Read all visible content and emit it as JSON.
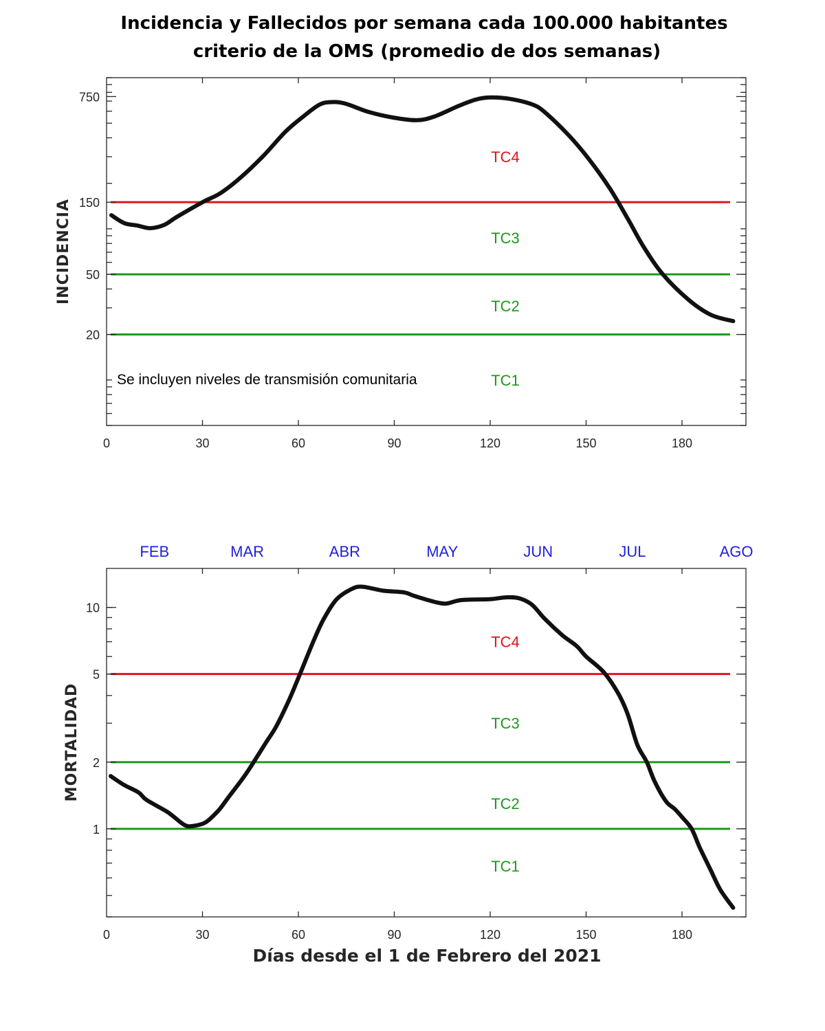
{
  "title_lines": [
    "Incidencia y Fallecidos por semana cada 100.000 habitantes",
    "criterio de la OMS (promedio de dos semanas)"
  ],
  "colors": {
    "curve": "#111111",
    "tc4": "#e0141e",
    "tc_green": "#1a9a1a",
    "month": "#1f1fe0"
  },
  "chart_data": [
    {
      "type": "line",
      "id": "incidencia",
      "ylabel": "INCIDENCIA",
      "xlabel": "",
      "yscale": "log",
      "xlim": [
        0,
        200
      ],
      "ylim": [
        5,
        1000
      ],
      "xticks": [
        0,
        30,
        60,
        90,
        120,
        150,
        180
      ],
      "xtick_labels": [
        "0",
        "30",
        "60",
        "90",
        "120",
        "150",
        "180"
      ],
      "yticks": [
        20,
        50,
        150,
        750
      ],
      "ytick_labels": [
        "20",
        "50",
        "150",
        "750"
      ],
      "grid": false,
      "annotation": "Se incluyen niveles de transmisión comunitaria",
      "thresholds": [
        {
          "value": 150,
          "color": "#e0141e"
        },
        {
          "value": 50,
          "color": "#1a9a1a"
        },
        {
          "value": 20,
          "color": "#1a9a1a"
        }
      ],
      "level_labels": [
        {
          "label": "TC4",
          "value": 300,
          "color": "#e0141e"
        },
        {
          "label": "TC3",
          "value": 87,
          "color": "#1a9a1a"
        },
        {
          "label": "TC2",
          "value": 31,
          "color": "#1a9a1a"
        },
        {
          "label": "TC1",
          "value": 10,
          "color": "#1a9a1a"
        }
      ],
      "series": [
        {
          "name": "Incidencia",
          "x": [
            1.5,
            5.6,
            9.7,
            13.6,
            18,
            22,
            30,
            35.6,
            42,
            49,
            56,
            61.5,
            66.5,
            70,
            74.5,
            82,
            89.6,
            97,
            102.5,
            110,
            115.5,
            120,
            126,
            133,
            137,
            144.6,
            151,
            157.5,
            163,
            168,
            174,
            182,
            189,
            196
          ],
          "y": [
            123,
            109,
            105,
            101,
            106,
            120,
            150,
            172,
            219,
            303,
            440,
            553,
            661,
            689,
            675,
            593,
            545,
            523,
            553,
            648,
            716,
            740,
            725,
            667,
            593,
            415,
            287,
            184,
            117,
            76,
            50,
            34,
            27,
            24.5
          ]
        }
      ]
    },
    {
      "type": "line",
      "id": "mortalidad",
      "ylabel": "MORTALIDAD",
      "xlabel": "Días desde el 1 de Febrero del 2021",
      "yscale": "log",
      "xlim": [
        0,
        200
      ],
      "ylim": [
        0.4,
        15
      ],
      "xticks": [
        0,
        30,
        60,
        90,
        120,
        150,
        180
      ],
      "xtick_labels": [
        "0",
        "30",
        "60",
        "90",
        "120",
        "150",
        "180"
      ],
      "yticks": [
        1,
        2,
        5,
        10
      ],
      "ytick_labels": [
        "1",
        "2",
        "5",
        "10"
      ],
      "grid": false,
      "months": [
        {
          "label": "FEB",
          "x": 15
        },
        {
          "label": "MAR",
          "x": 44
        },
        {
          "label": "ABR",
          "x": 74.5
        },
        {
          "label": "MAY",
          "x": 105
        },
        {
          "label": "JUN",
          "x": 135
        },
        {
          "label": "JUL",
          "x": 164.5
        },
        {
          "label": "AGO",
          "x": 197
        }
      ],
      "thresholds": [
        {
          "value": 5,
          "color": "#e0141e"
        },
        {
          "value": 2,
          "color": "#1a9a1a"
        },
        {
          "value": 1,
          "color": "#1a9a1a"
        }
      ],
      "level_labels": [
        {
          "label": "TC4",
          "value": 7.0,
          "color": "#e0141e"
        },
        {
          "label": "TC3",
          "value": 3.0,
          "color": "#1a9a1a"
        },
        {
          "label": "TC2",
          "value": 1.3,
          "color": "#1a9a1a"
        },
        {
          "label": "TC1",
          "value": 0.68,
          "color": "#1a9a1a"
        }
      ],
      "series": [
        {
          "name": "Mortalidad",
          "x": [
            1.3,
            5.4,
            10,
            12.5,
            18.3,
            20.5,
            24.4,
            27,
            31,
            35,
            38,
            43,
            46,
            50,
            53,
            57,
            60.5,
            65,
            68,
            72,
            76.6,
            80,
            86.5,
            93,
            96,
            101.5,
            106,
            111,
            120,
            125,
            129,
            133,
            137,
            142.5,
            147,
            150,
            155.5,
            160,
            163,
            166,
            169,
            171.5,
            175,
            177.7,
            180,
            183,
            185.6,
            189,
            192,
            196
          ],
          "y": [
            1.73,
            1.58,
            1.46,
            1.35,
            1.21,
            1.15,
            1.04,
            1.03,
            1.07,
            1.21,
            1.38,
            1.72,
            2.0,
            2.47,
            2.89,
            3.79,
            5.0,
            7.2,
            8.9,
            10.9,
            12.1,
            12.4,
            11.9,
            11.7,
            11.3,
            10.7,
            10.4,
            10.8,
            10.9,
            11.1,
            11.0,
            10.3,
            8.9,
            7.5,
            6.7,
            6.0,
            5.1,
            4.1,
            3.3,
            2.4,
            2.0,
            1.63,
            1.33,
            1.23,
            1.13,
            1.0,
            0.82,
            0.65,
            0.53,
            0.44
          ]
        }
      ]
    }
  ]
}
